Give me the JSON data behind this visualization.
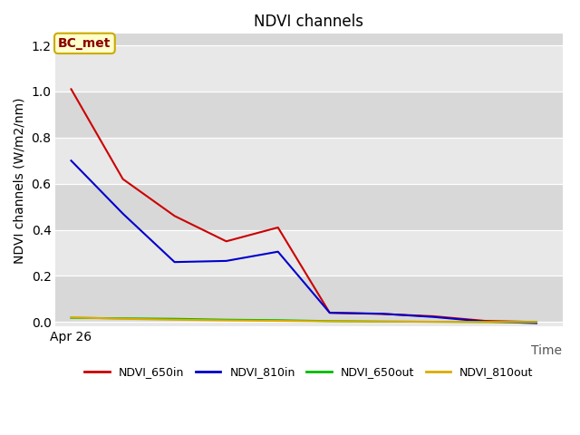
{
  "title": "NDVI channels",
  "xlabel": "Time",
  "ylabel": "NDVI channels (W/m2/nm)",
  "annotation": "BC_met",
  "background_color": "#e8e8e8",
  "x_tick_label": "Apr 26",
  "series": {
    "NDVI_650in": {
      "color": "#cc0000",
      "x": [
        0,
        1,
        2,
        3,
        4,
        5,
        6,
        7,
        8,
        9
      ],
      "y": [
        1.01,
        0.62,
        0.46,
        0.35,
        0.41,
        0.04,
        0.035,
        0.025,
        0.005,
        0.0
      ]
    },
    "NDVI_810in": {
      "color": "#0000cc",
      "x": [
        0,
        1,
        2,
        3,
        4,
        5,
        6,
        7,
        8,
        9
      ],
      "y": [
        0.7,
        0.47,
        0.26,
        0.265,
        0.305,
        0.04,
        0.036,
        0.022,
        0.002,
        -0.005
      ]
    },
    "NDVI_650out": {
      "color": "#00bb00",
      "x": [
        0,
        1,
        2,
        3,
        4,
        5,
        6,
        7,
        8,
        9
      ],
      "y": [
        0.018,
        0.016,
        0.014,
        0.01,
        0.008,
        0.004,
        0.002,
        0.001,
        0.0,
        0.0
      ]
    },
    "NDVI_810out": {
      "color": "#ddaa00",
      "x": [
        0,
        1,
        2,
        3,
        4,
        5,
        6,
        7,
        8,
        9
      ],
      "y": [
        0.02,
        0.014,
        0.01,
        0.007,
        0.005,
        0.003,
        0.002,
        0.001,
        0.0,
        0.0
      ]
    }
  },
  "ylim": [
    -0.02,
    1.25
  ],
  "xlim": [
    -0.3,
    9.5
  ],
  "yticks": [
    0.0,
    0.2,
    0.4,
    0.6,
    0.8,
    1.0,
    1.2
  ],
  "grid_colors": [
    "#d0d0d0",
    "#e8e8e8"
  ],
  "title_fontsize": 12,
  "axis_label_fontsize": 10,
  "tick_fontsize": 10,
  "legend_fontsize": 9,
  "annotation_fontsize": 10
}
